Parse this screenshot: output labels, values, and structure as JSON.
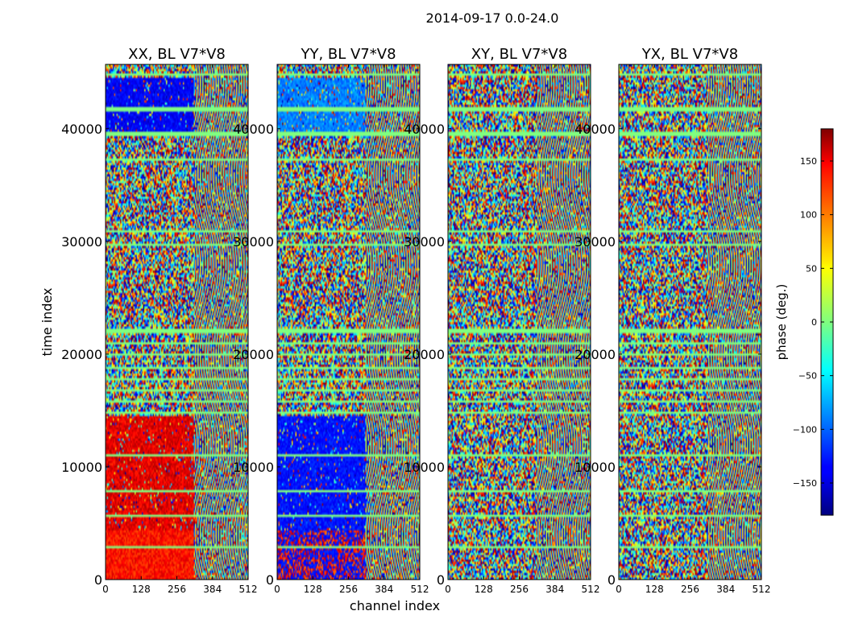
{
  "chart_data": {
    "type": "heatmap",
    "suptitle": "2014-09-17 0.0-24.0",
    "xlabel": "channel index",
    "ylabel": "time index",
    "xlim": [
      0,
      512
    ],
    "ylim": [
      0,
      45700
    ],
    "x_ticks": [
      0,
      128,
      256,
      384,
      512
    ],
    "x_tick_labels": [
      "0",
      "128",
      "256",
      "384",
      "512"
    ],
    "y_ticks": [
      0,
      10000,
      20000,
      30000,
      40000
    ],
    "y_tick_labels": [
      "0",
      "10000",
      "20000",
      "30000",
      "40000"
    ],
    "panels": [
      {
        "title": "XX, BL V7*V8",
        "polarization": "XX"
      },
      {
        "title": "YY, BL V7*V8",
        "polarization": "YY"
      },
      {
        "title": "XY, BL V7*V8",
        "polarization": "XY"
      },
      {
        "title": "YX, BL V7*V8",
        "polarization": "YX"
      }
    ],
    "colorbar": {
      "label": "phase (deg.)",
      "range": [
        -180,
        180
      ],
      "ticks": [
        150,
        100,
        50,
        0,
        -50,
        -100,
        -150
      ],
      "tick_labels": [
        "150",
        "100",
        "50",
        "0",
        "−50",
        "−100",
        "−150"
      ],
      "colormap": "jet"
    }
  }
}
